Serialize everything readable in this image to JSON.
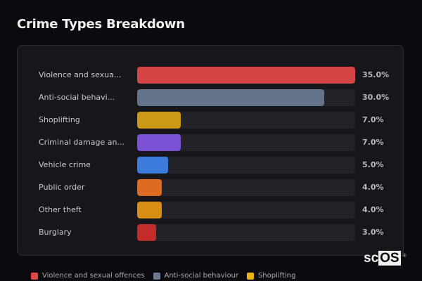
{
  "title": "Crime Types Breakdown",
  "chart_data": {
    "type": "bar",
    "orientation": "horizontal",
    "title": "Crime Types Breakdown",
    "categories": [
      "Violence and sexual offences",
      "Anti-social behaviour",
      "Shoplifting",
      "Criminal damage and arson",
      "Vehicle crime",
      "Public order",
      "Other theft",
      "Burglary"
    ],
    "display_labels": [
      "Violence and sexua...",
      "Anti-social behavi...",
      "Shoplifting",
      "Criminal damage an...",
      "Vehicle crime",
      "Public order",
      "Other theft",
      "Burglary"
    ],
    "values": [
      35.0,
      30.0,
      7.0,
      7.0,
      5.0,
      4.0,
      4.0,
      3.0
    ],
    "value_labels": [
      "35.0%",
      "30.0%",
      "7.0%",
      "7.0%",
      "5.0%",
      "4.0%",
      "4.0%",
      "3.0%"
    ],
    "colors": [
      "#d64545",
      "#64748b",
      "#ca9a14",
      "#7b52d6",
      "#3b7bdc",
      "#dd6a1f",
      "#d98f14",
      "#c42b2b"
    ],
    "unit": "%",
    "scale_max": 35.0,
    "grid": false,
    "legend": {
      "position": "bottom",
      "entries": [
        "Violence and sexual offences",
        "Anti-social behaviour",
        "Shoplifting"
      ]
    }
  },
  "legend": [
    {
      "label": "Violence and sexual offences",
      "color": "#e04848"
    },
    {
      "label": "Anti-social behaviour",
      "color": "#6b7a90"
    },
    {
      "label": "Shoplifting",
      "color": "#e8b418"
    }
  ],
  "watermark": {
    "prefix": "sc",
    "boxed": "OS",
    "mark": "®"
  }
}
